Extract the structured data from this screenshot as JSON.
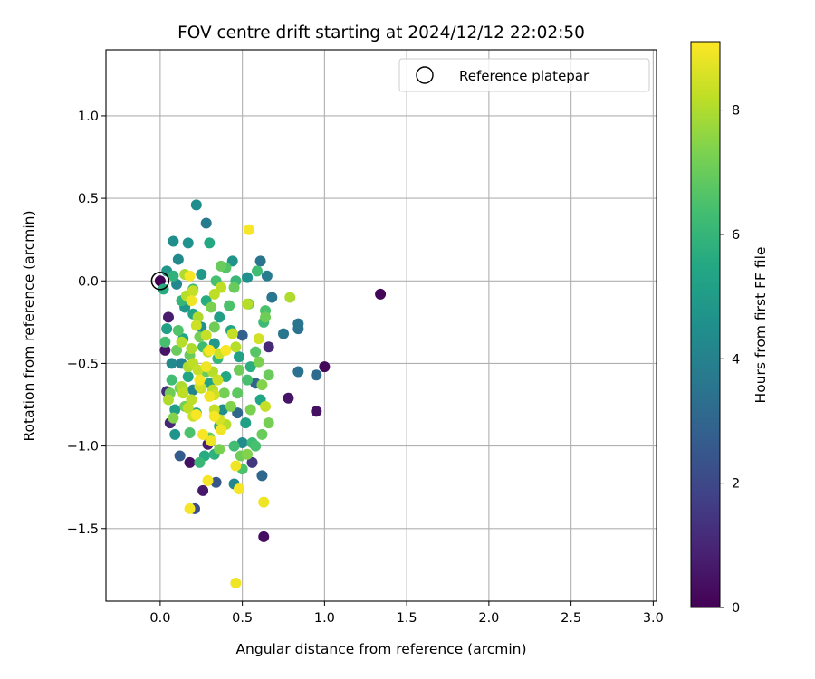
{
  "chart_data": {
    "type": "scatter",
    "title": "FOV centre drift starting at 2024/12/12 22:02:50",
    "xlabel": "Angular distance from reference (arcmin)",
    "ylabel": "Rotation from reference (arcmin)",
    "xlim": [
      -0.33,
      3.02
    ],
    "ylim": [
      -1.94,
      1.4
    ],
    "xticks": [
      "0.0",
      "0.5",
      "1.0",
      "1.5",
      "2.0",
      "2.5",
      "3.0"
    ],
    "xtick_values": [
      0.0,
      0.5,
      1.0,
      1.5,
      2.0,
      2.5,
      3.0
    ],
    "yticks": [
      "1.0",
      "0.5",
      "0.0",
      "−0.5",
      "−1.0",
      "−1.5"
    ],
    "ytick_values": [
      1.0,
      0.5,
      0.0,
      -0.5,
      -1.0,
      -1.5
    ],
    "grid": true,
    "legend": {
      "position": "top-right",
      "entries": [
        "Reference platepar"
      ]
    },
    "reference_point": {
      "x": 0.0,
      "y": 0.0
    },
    "colorbar": {
      "label": "Hours from first FF file",
      "colormap": "viridis",
      "range": [
        0,
        9.1
      ],
      "ticks": [
        "0",
        "2",
        "4",
        "6",
        "8"
      ],
      "tick_values": [
        0,
        2,
        4,
        6,
        8
      ]
    },
    "points": [
      {
        "x": 0.0,
        "y": 0.0,
        "c": 0.0
      },
      {
        "x": 1.34,
        "y": -0.08,
        "c": 0.1
      },
      {
        "x": 1.0,
        "y": -0.52,
        "c": 0.2
      },
      {
        "x": 0.95,
        "y": -0.79,
        "c": 0.4
      },
      {
        "x": 0.78,
        "y": -0.71,
        "c": 0.5
      },
      {
        "x": 0.63,
        "y": -1.55,
        "c": 0.3
      },
      {
        "x": 0.26,
        "y": -1.27,
        "c": 0.6
      },
      {
        "x": 0.18,
        "y": -1.1,
        "c": 0.4
      },
      {
        "x": 0.03,
        "y": -0.42,
        "c": 0.5
      },
      {
        "x": 0.05,
        "y": -0.22,
        "c": 0.7
      },
      {
        "x": 0.06,
        "y": -0.86,
        "c": 1.0
      },
      {
        "x": 0.04,
        "y": -0.67,
        "c": 1.2
      },
      {
        "x": 0.29,
        "y": -0.99,
        "c": 0.8
      },
      {
        "x": 0.56,
        "y": -1.1,
        "c": 1.5
      },
      {
        "x": 0.66,
        "y": -0.4,
        "c": 1.1
      },
      {
        "x": 0.21,
        "y": -1.38,
        "c": 2.2
      },
      {
        "x": 0.34,
        "y": -1.22,
        "c": 2.5
      },
      {
        "x": 0.12,
        "y": -1.06,
        "c": 2.7
      },
      {
        "x": 0.62,
        "y": -1.18,
        "c": 3.0
      },
      {
        "x": 0.95,
        "y": -0.57,
        "c": 3.2
      },
      {
        "x": 0.84,
        "y": -0.55,
        "c": 3.4
      },
      {
        "x": 0.84,
        "y": -0.26,
        "c": 3.5
      },
      {
        "x": 0.84,
        "y": -0.29,
        "c": 3.4
      },
      {
        "x": 0.75,
        "y": -0.32,
        "c": 3.6
      },
      {
        "x": 0.61,
        "y": 0.12,
        "c": 3.5
      },
      {
        "x": 0.65,
        "y": 0.03,
        "c": 3.8
      },
      {
        "x": 0.28,
        "y": 0.35,
        "c": 3.7
      },
      {
        "x": 0.68,
        "y": -0.1,
        "c": 3.6
      },
      {
        "x": 0.5,
        "y": -0.33,
        "c": 2.8
      },
      {
        "x": 0.47,
        "y": -0.8,
        "c": 3.0
      },
      {
        "x": 0.58,
        "y": -0.62,
        "c": 2.9
      },
      {
        "x": 0.22,
        "y": 0.46,
        "c": 4.4
      },
      {
        "x": 0.08,
        "y": 0.24,
        "c": 4.5
      },
      {
        "x": 0.17,
        "y": 0.23,
        "c": 4.6
      },
      {
        "x": 0.11,
        "y": 0.13,
        "c": 4.3
      },
      {
        "x": 0.04,
        "y": 0.06,
        "c": 4.8
      },
      {
        "x": 0.1,
        "y": -0.02,
        "c": 4.2
      },
      {
        "x": 0.25,
        "y": 0.04,
        "c": 4.9
      },
      {
        "x": 0.44,
        "y": 0.12,
        "c": 4.7
      },
      {
        "x": 0.53,
        "y": 0.02,
        "c": 4.6
      },
      {
        "x": 0.13,
        "y": -0.5,
        "c": 4.0
      },
      {
        "x": 0.2,
        "y": -0.66,
        "c": 4.1
      },
      {
        "x": 0.38,
        "y": -0.78,
        "c": 4.5
      },
      {
        "x": 0.07,
        "y": -0.5,
        "c": 4.3
      },
      {
        "x": 0.09,
        "y": -0.93,
        "c": 4.7
      },
      {
        "x": 0.45,
        "y": -1.23,
        "c": 4.2
      },
      {
        "x": 0.5,
        "y": -0.98,
        "c": 4.4
      },
      {
        "x": 0.25,
        "y": -0.28,
        "c": 4.6
      },
      {
        "x": 0.33,
        "y": -0.38,
        "c": 4.9
      },
      {
        "x": 0.15,
        "y": -0.16,
        "c": 4.8
      },
      {
        "x": 0.3,
        "y": 0.23,
        "c": 5.5
      },
      {
        "x": 0.04,
        "y": -0.29,
        "c": 5.2
      },
      {
        "x": 0.14,
        "y": -0.35,
        "c": 5.4
      },
      {
        "x": 0.2,
        "y": -0.2,
        "c": 5.3
      },
      {
        "x": 0.28,
        "y": -0.12,
        "c": 5.6
      },
      {
        "x": 0.36,
        "y": -0.22,
        "c": 5.1
      },
      {
        "x": 0.43,
        "y": -0.3,
        "c": 5.4
      },
      {
        "x": 0.4,
        "y": -0.58,
        "c": 5.5
      },
      {
        "x": 0.48,
        "y": -0.46,
        "c": 5.2
      },
      {
        "x": 0.55,
        "y": -0.52,
        "c": 5.7
      },
      {
        "x": 0.3,
        "y": -0.62,
        "c": 5.3
      },
      {
        "x": 0.22,
        "y": -0.8,
        "c": 5.6
      },
      {
        "x": 0.17,
        "y": -0.58,
        "c": 5.4
      },
      {
        "x": 0.09,
        "y": -0.78,
        "c": 5.1
      },
      {
        "x": 0.27,
        "y": -1.06,
        "c": 5.6
      },
      {
        "x": 0.33,
        "y": -1.05,
        "c": 5.8
      },
      {
        "x": 0.36,
        "y": -0.88,
        "c": 5.5
      },
      {
        "x": 0.52,
        "y": -0.86,
        "c": 5.2
      },
      {
        "x": 0.61,
        "y": -0.72,
        "c": 5.4
      },
      {
        "x": 0.02,
        "y": -0.05,
        "c": 5.6
      },
      {
        "x": 0.08,
        "y": 0.03,
        "c": 5.9
      },
      {
        "x": 0.2,
        "y": -0.05,
        "c": 6.2
      },
      {
        "x": 0.13,
        "y": -0.12,
        "c": 6.0
      },
      {
        "x": 0.34,
        "y": 0.0,
        "c": 6.4
      },
      {
        "x": 0.46,
        "y": 0.0,
        "c": 6.1
      },
      {
        "x": 0.4,
        "y": 0.08,
        "c": 6.6
      },
      {
        "x": 0.59,
        "y": 0.06,
        "c": 6.3
      },
      {
        "x": 0.64,
        "y": -0.18,
        "c": 6.5
      },
      {
        "x": 0.63,
        "y": -0.25,
        "c": 6.2
      },
      {
        "x": 0.58,
        "y": -0.43,
        "c": 6.7
      },
      {
        "x": 0.53,
        "y": -0.6,
        "c": 6.4
      },
      {
        "x": 0.47,
        "y": -0.68,
        "c": 6.8
      },
      {
        "x": 0.24,
        "y": -1.1,
        "c": 6.1
      },
      {
        "x": 0.18,
        "y": -0.92,
        "c": 6.5
      },
      {
        "x": 0.07,
        "y": -0.6,
        "c": 6.3
      },
      {
        "x": 0.03,
        "y": -0.37,
        "c": 6.4
      },
      {
        "x": 0.11,
        "y": -0.3,
        "c": 6.6
      },
      {
        "x": 0.56,
        "y": -0.98,
        "c": 6.2
      },
      {
        "x": 0.58,
        "y": -1.0,
        "c": 6.4
      },
      {
        "x": 0.5,
        "y": -1.14,
        "c": 6.5
      },
      {
        "x": 0.45,
        "y": -1.0,
        "c": 6.3
      },
      {
        "x": 0.35,
        "y": -0.47,
        "c": 6.0
      },
      {
        "x": 0.26,
        "y": -0.4,
        "c": 6.2
      },
      {
        "x": 0.42,
        "y": -0.15,
        "c": 6.5
      },
      {
        "x": 0.37,
        "y": 0.09,
        "c": 7.0
      },
      {
        "x": 0.45,
        "y": -0.04,
        "c": 7.0
      },
      {
        "x": 0.54,
        "y": -0.14,
        "c": 7.2
      },
      {
        "x": 0.64,
        "y": -0.22,
        "c": 7.1
      },
      {
        "x": 0.6,
        "y": -0.49,
        "c": 7.3
      },
      {
        "x": 0.66,
        "y": -0.57,
        "c": 7.0
      },
      {
        "x": 0.62,
        "y": -0.63,
        "c": 7.4
      },
      {
        "x": 0.66,
        "y": -0.86,
        "c": 7.2
      },
      {
        "x": 0.62,
        "y": -0.93,
        "c": 7.0
      },
      {
        "x": 0.55,
        "y": -0.78,
        "c": 7.3
      },
      {
        "x": 0.48,
        "y": -0.54,
        "c": 7.1
      },
      {
        "x": 0.43,
        "y": -0.76,
        "c": 7.4
      },
      {
        "x": 0.39,
        "y": -0.68,
        "c": 7.2
      },
      {
        "x": 0.3,
        "y": -0.95,
        "c": 7.0
      },
      {
        "x": 0.36,
        "y": -1.02,
        "c": 7.3
      },
      {
        "x": 0.49,
        "y": -1.06,
        "c": 7.1
      },
      {
        "x": 0.53,
        "y": -1.05,
        "c": 7.4
      },
      {
        "x": 0.28,
        "y": -0.55,
        "c": 7.0
      },
      {
        "x": 0.24,
        "y": -0.34,
        "c": 7.2
      },
      {
        "x": 0.33,
        "y": -0.28,
        "c": 7.1
      },
      {
        "x": 0.31,
        "y": -0.16,
        "c": 7.3
      },
      {
        "x": 0.18,
        "y": -0.45,
        "c": 7.0
      },
      {
        "x": 0.12,
        "y": -0.65,
        "c": 7.2
      },
      {
        "x": 0.06,
        "y": -0.68,
        "c": 7.1
      },
      {
        "x": 0.08,
        "y": -0.83,
        "c": 7.4
      },
      {
        "x": 0.15,
        "y": -0.76,
        "c": 7.2
      },
      {
        "x": 0.1,
        "y": -0.42,
        "c": 7.0
      },
      {
        "x": 0.79,
        "y": -0.1,
        "c": 8.0
      },
      {
        "x": 0.53,
        "y": -0.14,
        "c": 8.1
      },
      {
        "x": 0.37,
        "y": -0.04,
        "c": 8.2
      },
      {
        "x": 0.15,
        "y": 0.04,
        "c": 8.0
      },
      {
        "x": 0.2,
        "y": -0.06,
        "c": 8.3
      },
      {
        "x": 0.16,
        "y": -0.09,
        "c": 8.1
      },
      {
        "x": 0.23,
        "y": -0.22,
        "c": 8.0
      },
      {
        "x": 0.22,
        "y": -0.27,
        "c": 8.4
      },
      {
        "x": 0.33,
        "y": -0.08,
        "c": 8.2
      },
      {
        "x": 0.28,
        "y": -0.33,
        "c": 8.3
      },
      {
        "x": 0.13,
        "y": -0.37,
        "c": 8.1
      },
      {
        "x": 0.19,
        "y": -0.41,
        "c": 8.0
      },
      {
        "x": 0.29,
        "y": -0.43,
        "c": 8.2
      },
      {
        "x": 0.36,
        "y": -0.44,
        "c": 8.4
      },
      {
        "x": 0.46,
        "y": -0.4,
        "c": 8.1
      },
      {
        "x": 0.44,
        "y": -0.32,
        "c": 8.3
      },
      {
        "x": 0.6,
        "y": -0.35,
        "c": 8.5
      },
      {
        "x": 0.2,
        "y": -0.5,
        "c": 8.2
      },
      {
        "x": 0.17,
        "y": -0.52,
        "c": 8.0
      },
      {
        "x": 0.23,
        "y": -0.54,
        "c": 8.3
      },
      {
        "x": 0.32,
        "y": -0.55,
        "c": 8.1
      },
      {
        "x": 0.35,
        "y": -0.6,
        "c": 8.4
      },
      {
        "x": 0.14,
        "y": -0.68,
        "c": 8.2
      },
      {
        "x": 0.13,
        "y": -0.64,
        "c": 8.0
      },
      {
        "x": 0.24,
        "y": -0.64,
        "c": 8.5
      },
      {
        "x": 0.25,
        "y": -0.65,
        "c": 8.3
      },
      {
        "x": 0.32,
        "y": -0.66,
        "c": 8.1
      },
      {
        "x": 0.33,
        "y": -0.69,
        "c": 8.4
      },
      {
        "x": 0.19,
        "y": -0.72,
        "c": 8.2
      },
      {
        "x": 0.05,
        "y": -0.72,
        "c": 8.0
      },
      {
        "x": 0.33,
        "y": -0.78,
        "c": 8.3
      },
      {
        "x": 0.36,
        "y": -0.84,
        "c": 8.5
      },
      {
        "x": 0.4,
        "y": -0.87,
        "c": 8.1
      },
      {
        "x": 0.2,
        "y": -0.82,
        "c": 8.4
      },
      {
        "x": 0.17,
        "y": -0.77,
        "c": 8.2
      },
      {
        "x": 0.64,
        "y": -0.76,
        "c": 8.3
      },
      {
        "x": 0.54,
        "y": 0.31,
        "c": 9.0
      },
      {
        "x": 0.18,
        "y": 0.03,
        "c": 9.0
      },
      {
        "x": 0.19,
        "y": -0.12,
        "c": 8.9
      },
      {
        "x": 0.3,
        "y": -0.42,
        "c": 9.0
      },
      {
        "x": 0.28,
        "y": -0.52,
        "c": 8.9
      },
      {
        "x": 0.24,
        "y": -0.6,
        "c": 9.0
      },
      {
        "x": 0.3,
        "y": -0.7,
        "c": 8.9
      },
      {
        "x": 0.33,
        "y": -0.82,
        "c": 9.0
      },
      {
        "x": 0.37,
        "y": -0.9,
        "c": 8.9
      },
      {
        "x": 0.26,
        "y": -0.93,
        "c": 9.0
      },
      {
        "x": 0.31,
        "y": -0.97,
        "c": 8.9
      },
      {
        "x": 0.29,
        "y": -1.21,
        "c": 9.0
      },
      {
        "x": 0.46,
        "y": -1.12,
        "c": 8.9
      },
      {
        "x": 0.48,
        "y": -1.26,
        "c": 9.0
      },
      {
        "x": 0.63,
        "y": -1.34,
        "c": 8.9
      },
      {
        "x": 0.18,
        "y": -1.38,
        "c": 9.0
      },
      {
        "x": 0.46,
        "y": -1.83,
        "c": 8.9
      },
      {
        "x": 0.22,
        "y": -0.81,
        "c": 9.0
      },
      {
        "x": 0.4,
        "y": -0.42,
        "c": 9.0
      }
    ]
  }
}
